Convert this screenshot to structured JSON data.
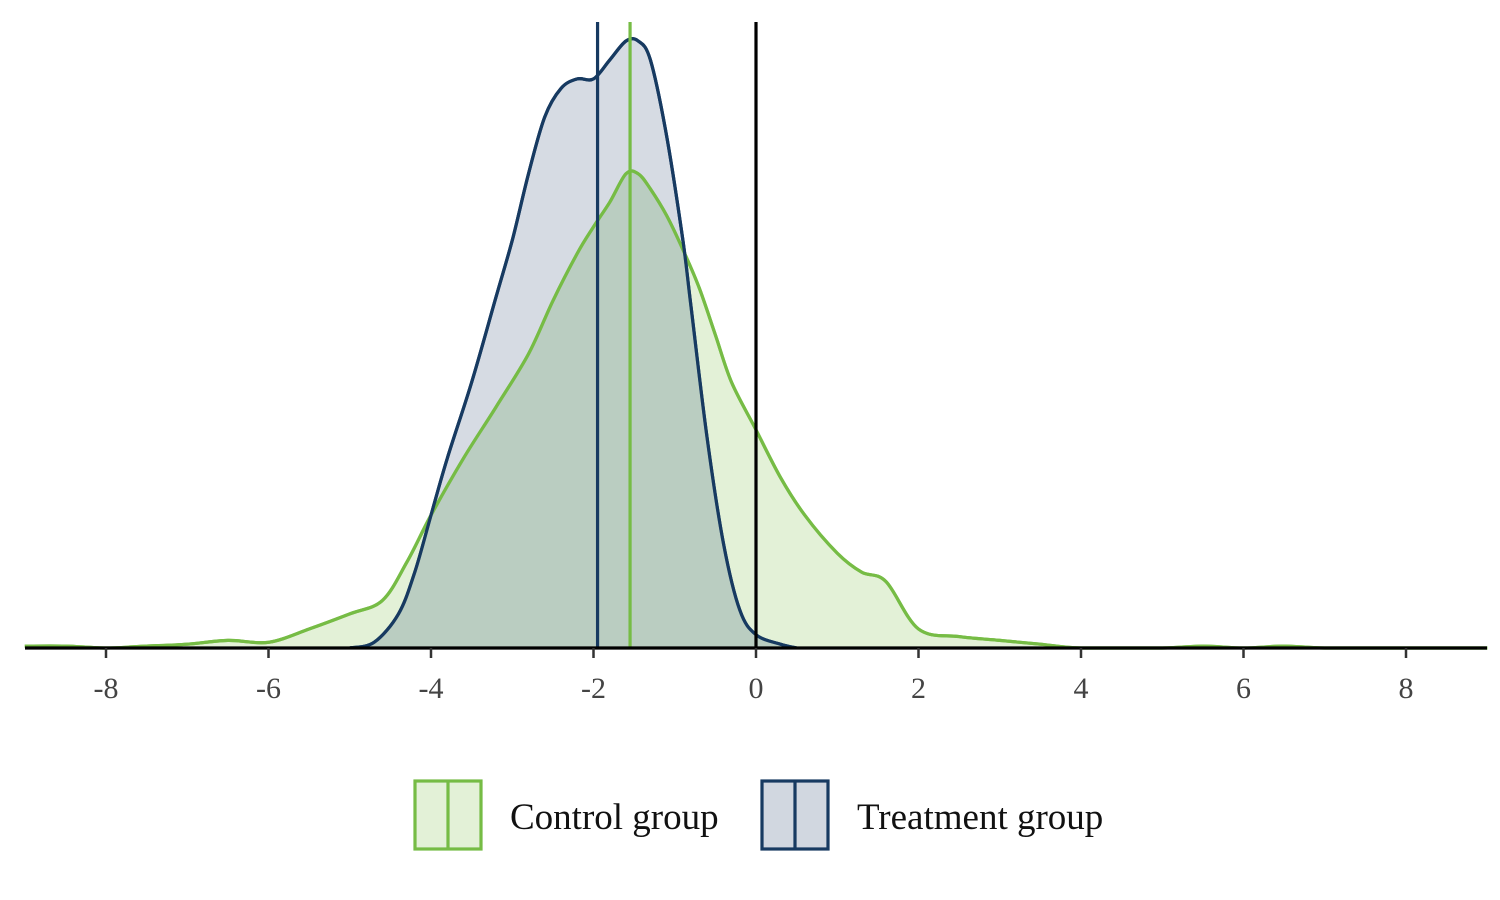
{
  "chart_data": {
    "type": "area",
    "subtype": "density",
    "title": "",
    "xlabel": "",
    "ylabel": "",
    "xlim": [
      -9,
      9
    ],
    "ylim": [
      0,
      0.33
    ],
    "x_ticks": [
      -8,
      -6,
      -4,
      -2,
      0,
      2,
      4,
      6,
      8
    ],
    "x_tick_labels": [
      "-8",
      "-6",
      "-4",
      "-2",
      "0",
      "2",
      "4",
      "6",
      "8"
    ],
    "grid": false,
    "legend_position": "bottom",
    "reference_line": {
      "x": 0,
      "color": "#000000"
    },
    "series": [
      {
        "name": "Control group",
        "color": "#76bc45",
        "fill": "#e3f1d7",
        "mean": -1.55,
        "x": [
          -9,
          -8.5,
          -8,
          -7.5,
          -7,
          -6.5,
          -6,
          -5.5,
          -5,
          -4.6,
          -4.3,
          -4,
          -3.6,
          -3.2,
          -2.8,
          -2.5,
          -2.2,
          -2,
          -1.8,
          -1.6,
          -1.45,
          -1.3,
          -1.1,
          -0.9,
          -0.7,
          -0.5,
          -0.3,
          0,
          0.3,
          0.6,
          1,
          1.3,
          1.6,
          2,
          2.5,
          3,
          3.5,
          4,
          5,
          5.5,
          6,
          6.5,
          7,
          8,
          9
        ],
        "y": [
          0.001,
          0.001,
          0,
          0.001,
          0.002,
          0.004,
          0.003,
          0.01,
          0.018,
          0.025,
          0.045,
          0.07,
          0.1,
          0.127,
          0.155,
          0.183,
          0.208,
          0.222,
          0.235,
          0.25,
          0.25,
          0.242,
          0.228,
          0.21,
          0.19,
          0.165,
          0.14,
          0.115,
          0.09,
          0.07,
          0.05,
          0.04,
          0.035,
          0.01,
          0.006,
          0.004,
          0.002,
          0,
          0,
          0.001,
          0,
          0.001,
          0,
          0,
          0
        ]
      },
      {
        "name": "Treatment group",
        "color": "#173a61",
        "fill": "#d1d7e0",
        "mean": -1.95,
        "x": [
          -5,
          -4.7,
          -4.4,
          -4.2,
          -4,
          -3.8,
          -3.5,
          -3.2,
          -3,
          -2.8,
          -2.6,
          -2.4,
          -2.2,
          -2,
          -1.8,
          -1.6,
          -1.45,
          -1.3,
          -1.1,
          -0.9,
          -0.8,
          -0.6,
          -0.4,
          -0.2,
          0,
          0.3,
          0.5
        ],
        "y": [
          0,
          0.003,
          0.018,
          0.04,
          0.07,
          0.1,
          0.14,
          0.185,
          0.215,
          0.25,
          0.28,
          0.295,
          0.3,
          0.3,
          0.31,
          0.32,
          0.32,
          0.31,
          0.27,
          0.215,
          0.18,
          0.11,
          0.055,
          0.02,
          0.007,
          0.002,
          0
        ]
      }
    ]
  }
}
